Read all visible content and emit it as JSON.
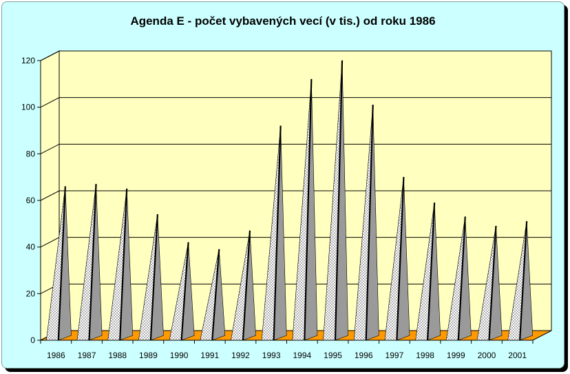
{
  "chart_data": {
    "type": "bar",
    "title": "Agenda E - počet vybavených vecí (v tis.) od roku 1986",
    "xlabel": "",
    "ylabel": "",
    "categories": [
      "1986",
      "1987",
      "1988",
      "1989",
      "1990",
      "1991",
      "1992",
      "1993",
      "1994",
      "1995",
      "1996",
      "1997",
      "1998",
      "1999",
      "2000",
      "2001"
    ],
    "values": [
      64,
      65,
      63,
      52,
      40,
      37,
      45,
      90,
      110,
      118,
      99,
      68,
      57,
      51,
      47,
      49
    ],
    "ylim": [
      0,
      120
    ],
    "yticks": [
      0,
      20,
      40,
      60,
      80,
      100,
      120
    ],
    "grid": true,
    "legend": "none",
    "colors": {
      "wall": "#ffffc0",
      "floor": "#ff9900",
      "marker": "#c8c8c8",
      "marker_edge": "#000000",
      "background": "#ccffff",
      "gridline": "#000000"
    }
  }
}
